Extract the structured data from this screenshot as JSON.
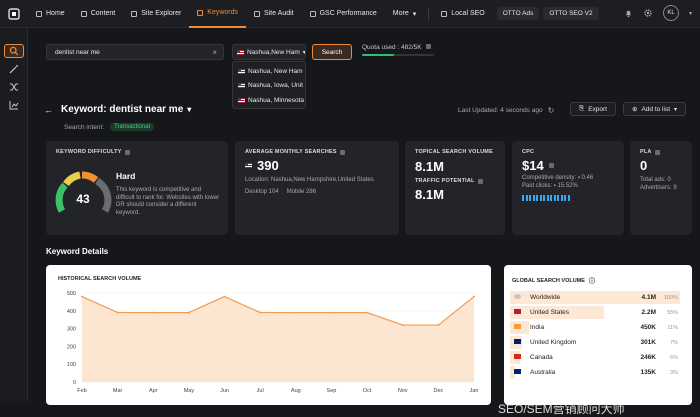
{
  "nav": {
    "items": [
      {
        "label": "Home",
        "icon": "home-icon"
      },
      {
        "label": "Content",
        "icon": "pen-icon"
      },
      {
        "label": "Site Explorer",
        "icon": "compass-icon"
      },
      {
        "label": "Keywords",
        "icon": "key-icon",
        "active": true
      },
      {
        "label": "Site Audit",
        "icon": "wrench-icon"
      },
      {
        "label": "GSC Performance",
        "icon": "chart-icon"
      },
      {
        "label": "More",
        "icon": "chevron-down-icon"
      },
      {
        "label": "Local SEO",
        "icon": "pin-icon"
      }
    ],
    "pills": [
      "OTTO Ads",
      "OTTO SEO V2"
    ],
    "avatar": "KL"
  },
  "search": {
    "value": "dentist near me",
    "button": "Search"
  },
  "location": {
    "selected": "Nashua,New Ham",
    "options": [
      "Nashua, New Ham",
      "Nashua, Iowa, Unit",
      "Nashua, Minnesota"
    ]
  },
  "quota": {
    "text": "Quota used : 482/5K",
    "fraction": 0.45
  },
  "keyword": {
    "title": "Keyword: dentist near me",
    "intent_label": "Search intent:",
    "intent": "Transactional",
    "updated": "Last Updated: 4 seconds ago",
    "export": "Export",
    "add_to_list": "Add to list"
  },
  "cards": {
    "kd": {
      "label": "KEYWORD DIFFICULTY",
      "value": "43",
      "rating": "Hard",
      "desc": "This keyword is competitive and difficult to rank for. Websites with lower DR should consider a different keyword.",
      "gauge_fraction": 0.43
    },
    "ams": {
      "label": "AVERAGE MONTHLY SEARCHES",
      "value": "390",
      "location": "Location: Nashua,New Hampshire,United States",
      "desktop": "Desktop  104",
      "mobile": "Mobile  286"
    },
    "tsv": {
      "label": "TOPICAL SEARCH VOLUME",
      "value": "8.1M",
      "tp_label": "TRAFFIC POTENTIAL",
      "tp_value": "8.1M"
    },
    "cpc": {
      "label": "CPC",
      "value": "$14",
      "density_label": "Competitive density:",
      "density": "0.46",
      "paid_label": "Paid clicks:",
      "paid": "15.52%"
    },
    "pla": {
      "label": "PLA",
      "value": "0",
      "total_ads": "Total ads: 0",
      "advertisers": "Advertisers: 9"
    }
  },
  "section_title": "Keyword Details",
  "historical": {
    "title": "HISTORICAL SEARCH VOLUME"
  },
  "chart_data": {
    "type": "area",
    "x": [
      "Feb",
      "Mar",
      "Apr",
      "May",
      "Jun",
      "Jul",
      "Aug",
      "Sep",
      "Oct",
      "Nov",
      "Dec",
      "Jan"
    ],
    "values": [
      480,
      390,
      390,
      390,
      480,
      390,
      390,
      390,
      390,
      320,
      320,
      480
    ],
    "ylim": [
      0,
      500
    ],
    "yticks": [
      0,
      100,
      200,
      300,
      400,
      500
    ],
    "color": "#f39a4c"
  },
  "global": {
    "title": "GLOBAL SEARCH VOLUME",
    "rows": [
      {
        "country": "Worldwide",
        "flag": "globe",
        "value": "4.1M",
        "pct": "100%",
        "share": 1.0
      },
      {
        "country": "United States",
        "flag": "us",
        "value": "2.2M",
        "pct": "55%",
        "share": 0.55
      },
      {
        "country": "India",
        "flag": "in",
        "value": "450K",
        "pct": "11%",
        "share": 0.11
      },
      {
        "country": "United Kingdom",
        "flag": "gb",
        "value": "301K",
        "pct": "7%",
        "share": 0.07
      },
      {
        "country": "Canada",
        "flag": "ca",
        "value": "246K",
        "pct": "6%",
        "share": 0.06
      },
      {
        "country": "Australia",
        "flag": "au",
        "value": "135K",
        "pct": "3%",
        "share": 0.03
      }
    ]
  },
  "watermark": "SEO/SEM营销顾问大师"
}
